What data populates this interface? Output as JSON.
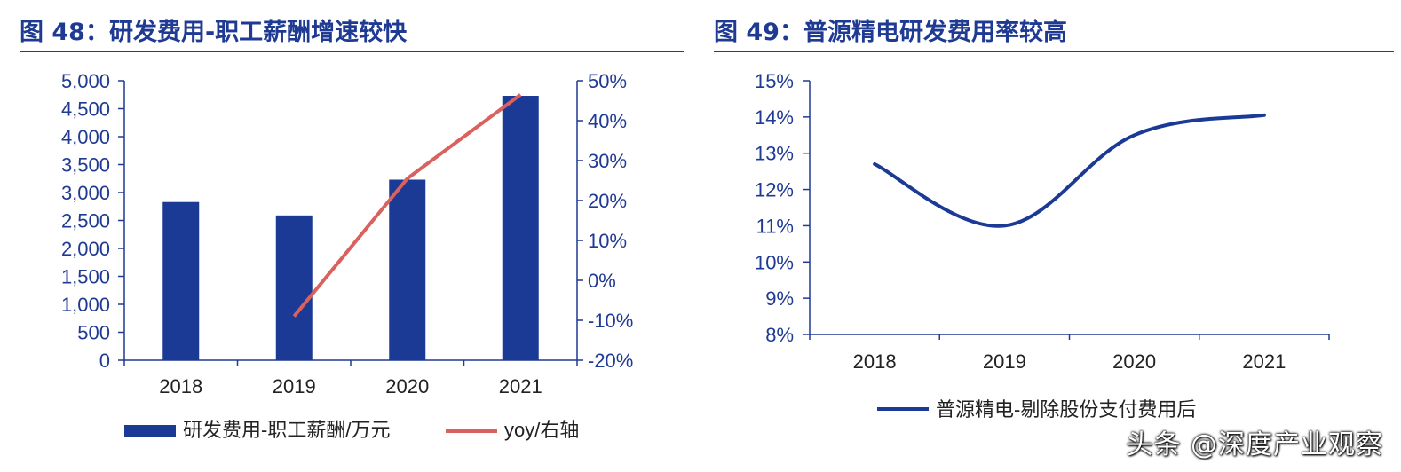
{
  "watermark": "头条 @深度产业观察",
  "colors": {
    "bar": "#1b3a96",
    "yoy_line": "#d9625e",
    "axis": "#1f3a93",
    "title": "#1f3a93"
  },
  "chart_data": [
    {
      "type": "bar",
      "title": "图 48：研发费用-职工薪酬增速较快",
      "categories": [
        "2018",
        "2019",
        "2020",
        "2021"
      ],
      "series": [
        {
          "name": "研发费用-职工薪酬/万元",
          "type": "bar",
          "axis": "left",
          "values": [
            2830,
            2590,
            3230,
            4730
          ]
        },
        {
          "name": "yoy/右轴",
          "type": "line",
          "axis": "right",
          "values": [
            null,
            -0.09,
            0.255,
            0.465
          ]
        }
      ],
      "ylim": [
        0,
        5000
      ],
      "yticks": [
        0,
        500,
        1000,
        1500,
        2000,
        2500,
        3000,
        3500,
        4000,
        4500,
        5000
      ],
      "ytick_labels": [
        "0",
        "500",
        "1,000",
        "1,500",
        "2,000",
        "2,500",
        "3,000",
        "3,500",
        "4,000",
        "4,500",
        "5,000"
      ],
      "y2lim": [
        -0.2,
        0.5
      ],
      "y2ticks": [
        -0.2,
        -0.1,
        0,
        0.1,
        0.2,
        0.3,
        0.4,
        0.5
      ],
      "y2tick_labels": [
        "-20%",
        "-10%",
        "0%",
        "10%",
        "20%",
        "30%",
        "40%",
        "50%"
      ],
      "legend_position": "bottom",
      "grid": false
    },
    {
      "type": "line",
      "title": "图 49：普源精电研发费用率较高",
      "categories": [
        "2018",
        "2019",
        "2020",
        "2021"
      ],
      "series": [
        {
          "name": "普源精电-剔除股份支付费用后",
          "values": [
            0.127,
            0.11,
            0.135,
            0.1405
          ]
        }
      ],
      "ylim": [
        0.08,
        0.15
      ],
      "yticks": [
        0.08,
        0.09,
        0.1,
        0.11,
        0.12,
        0.13,
        0.14,
        0.15
      ],
      "ytick_labels": [
        "8%",
        "9%",
        "10%",
        "11%",
        "12%",
        "13%",
        "14%",
        "15%"
      ],
      "legend_position": "bottom",
      "grid": false
    }
  ]
}
